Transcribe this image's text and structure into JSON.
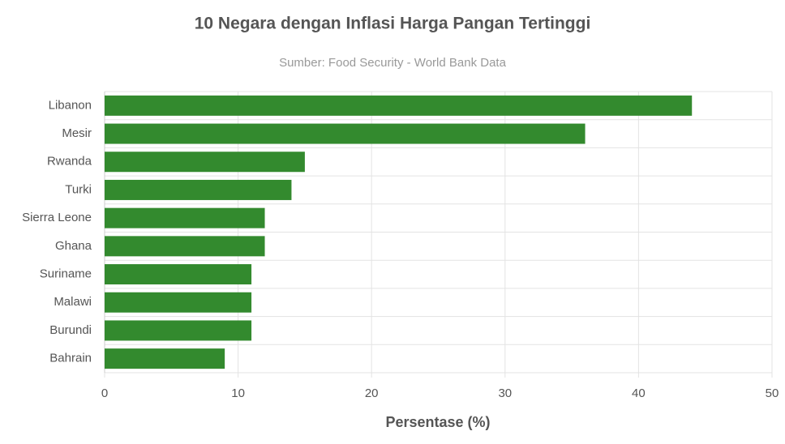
{
  "chart_data": {
    "type": "bar",
    "orientation": "horizontal",
    "title": "10 Negara dengan Inflasi Harga Pangan Tertinggi",
    "subtitle": "Sumber: Food Security - World Bank Data",
    "x_label": "Persentase (%)",
    "categories": [
      "Libanon",
      "Mesir",
      "Rwanda",
      "Turki",
      "Sierra Leone",
      "Ghana",
      "Suriname",
      "Malawi",
      "Burundi",
      "Bahrain"
    ],
    "values": [
      44,
      36,
      15,
      14,
      12,
      12,
      11,
      11,
      11,
      9
    ],
    "color": "#338a2e",
    "xlim": [
      0,
      50
    ],
    "xticks": [
      0,
      10,
      20,
      30,
      40,
      50
    ],
    "grid": true
  }
}
